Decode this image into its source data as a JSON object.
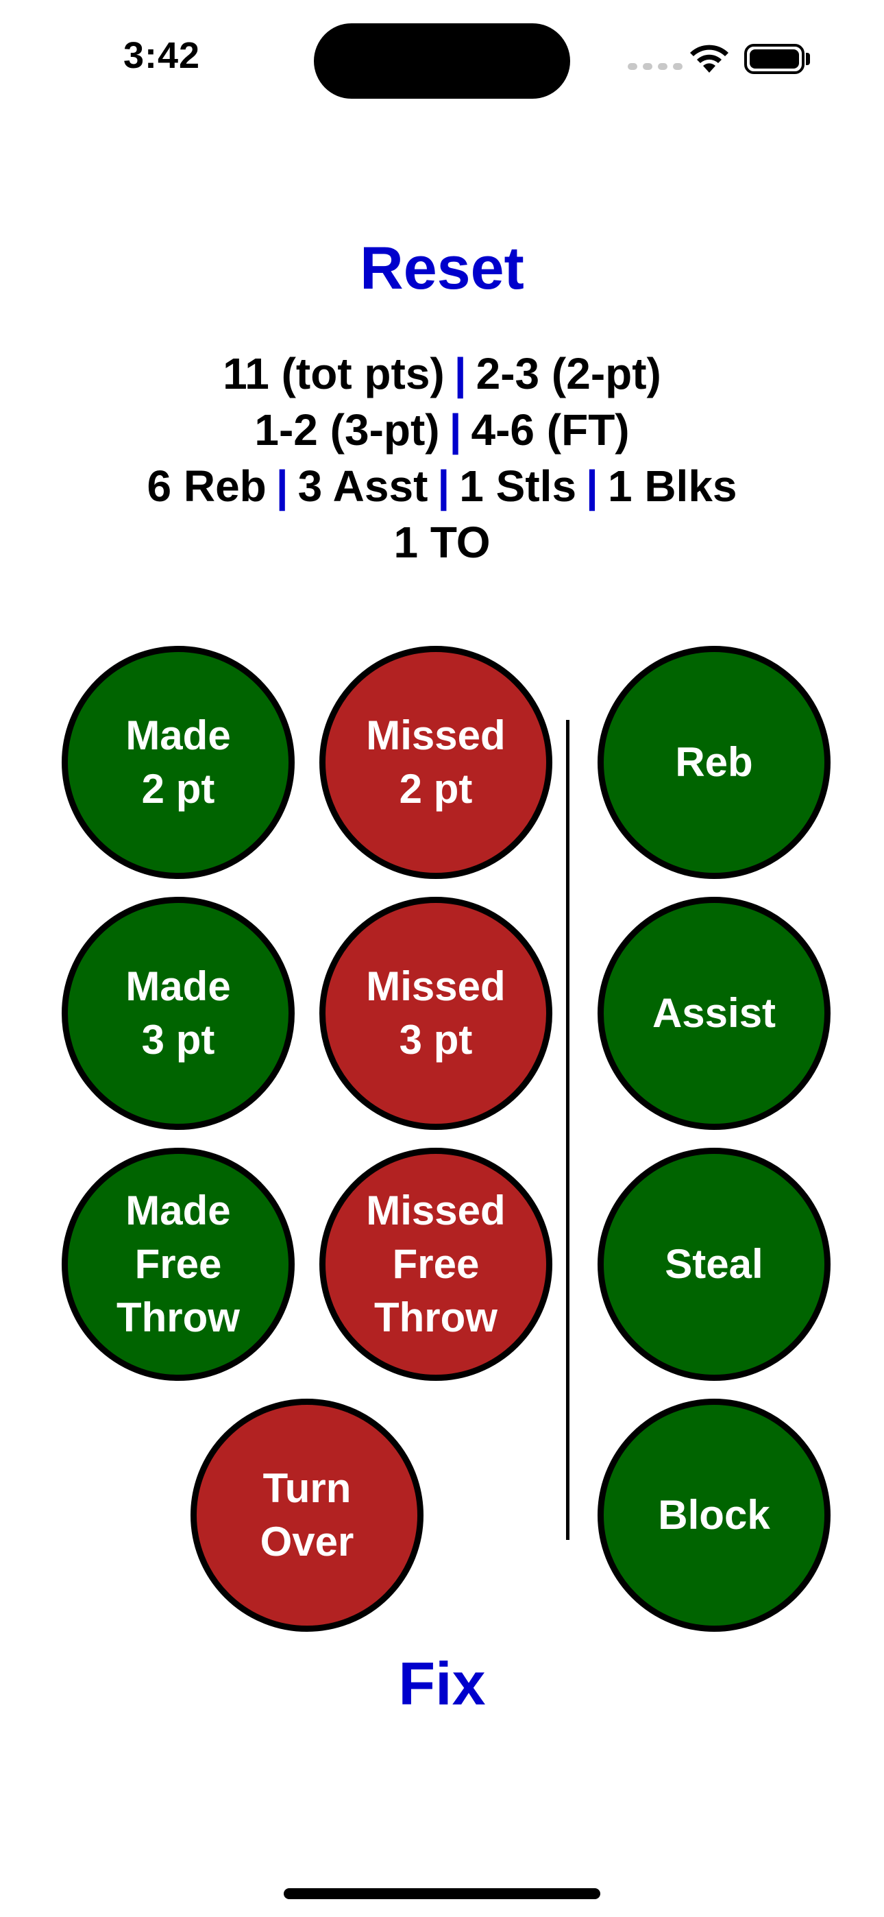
{
  "status_bar": {
    "time": "3:42"
  },
  "reset_label": "Reset",
  "stats": {
    "line1": [
      "11 (tot pts)",
      "2-3 (2-pt)"
    ],
    "line2": [
      "1-2 (3-pt)",
      "4-6 (FT)"
    ],
    "line3": [
      "6 Reb",
      "3 Asst",
      "1 Stls",
      "1 Blks"
    ],
    "line4": "1 TO",
    "separator": "|"
  },
  "buttons": {
    "made_2pt": "Made\n2 pt",
    "missed_2pt": "Missed\n2 pt",
    "made_3pt": "Made\n3 pt",
    "missed_3pt": "Missed\n3 pt",
    "made_ft": "Made\nFree\nThrow",
    "missed_ft": "Missed\nFree\nThrow",
    "turnover": "Turn\nOver",
    "rebound": "Reb",
    "assist": "Assist",
    "steal": "Steal",
    "block": "Block"
  },
  "fix_label": "Fix",
  "colors": {
    "accent": "#0000cc",
    "made": "#006400",
    "missed": "#b22222"
  }
}
